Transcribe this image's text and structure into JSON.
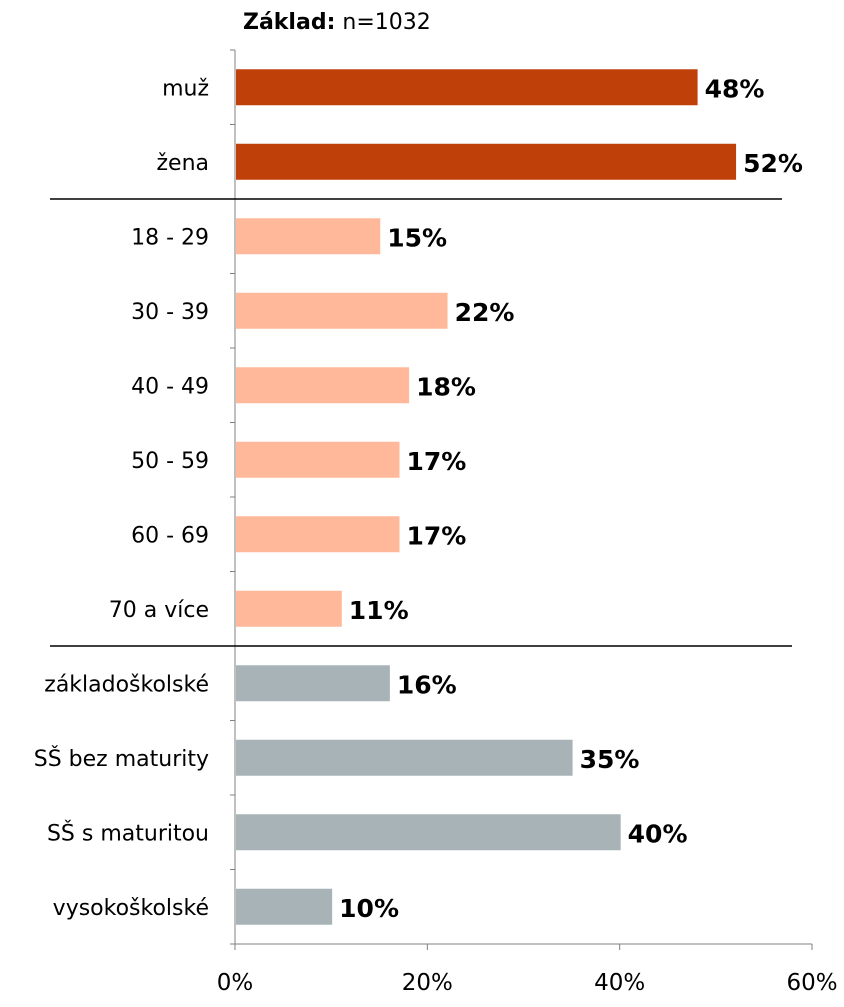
{
  "header": {
    "base_label": "Základ:",
    "base_value": "n=1032"
  },
  "chart_data": {
    "type": "bar",
    "orientation": "horizontal",
    "categories": [
      "muž",
      "žena",
      "18 - 29",
      "30 - 39",
      "40 - 49",
      "50 - 59",
      "60 - 69",
      "70 a více",
      "základoškolské",
      "SŠ bez maturity",
      "SŠ s maturitou",
      "vysokoškolské"
    ],
    "values": [
      48,
      52,
      15,
      22,
      18,
      17,
      17,
      11,
      16,
      35,
      40,
      10
    ],
    "value_labels": [
      "48%",
      "52%",
      "15%",
      "22%",
      "18%",
      "17%",
      "17%",
      "11%",
      "16%",
      "35%",
      "40%",
      "10%"
    ],
    "groups": [
      {
        "categories": [
          "muž",
          "žena"
        ],
        "color": "#C0400A"
      },
      {
        "categories": [
          "18 - 29",
          "30 - 39",
          "40 - 49",
          "50 - 59",
          "60 - 69",
          "70 a více"
        ],
        "color": "#FFB899"
      },
      {
        "categories": [
          "základoškolské",
          "SŠ bez maturity",
          "SŠ s maturitou",
          "vysokoškolské"
        ],
        "color": "#A7B3B6"
      }
    ],
    "xlim": [
      0,
      60
    ],
    "x_ticks": [
      0,
      20,
      40,
      60
    ],
    "x_tick_labels": [
      "0%",
      "20%",
      "40%",
      "60%"
    ],
    "grid": false,
    "legend": "none",
    "title": "",
    "xlabel": "",
    "ylabel": ""
  }
}
